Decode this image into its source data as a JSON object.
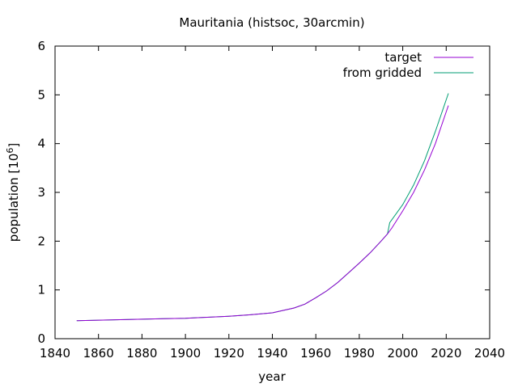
{
  "chart_data": {
    "type": "line",
    "title": "Mauritania (histsoc, 30arcmin)",
    "xlabel": "year",
    "ylabel_base": "population [10",
    "ylabel_exp": "6",
    "ylabel_close": "]",
    "xlim": [
      1840,
      2040
    ],
    "ylim": [
      0,
      6
    ],
    "xticks": [
      1840,
      1860,
      1880,
      1900,
      1920,
      1940,
      1960,
      1980,
      2000,
      2020,
      2040
    ],
    "yticks": [
      0,
      1,
      2,
      3,
      4,
      5,
      6
    ],
    "grid": false,
    "legend_position": "top-right",
    "series": [
      {
        "name": "target",
        "color": "#9400d3",
        "points": [
          [
            1850,
            0.37
          ],
          [
            1860,
            0.38
          ],
          [
            1870,
            0.39
          ],
          [
            1880,
            0.4
          ],
          [
            1890,
            0.41
          ],
          [
            1900,
            0.42
          ],
          [
            1910,
            0.44
          ],
          [
            1920,
            0.46
          ],
          [
            1930,
            0.49
          ],
          [
            1940,
            0.53
          ],
          [
            1950,
            0.63
          ],
          [
            1955,
            0.71
          ],
          [
            1960,
            0.84
          ],
          [
            1965,
            0.98
          ],
          [
            1970,
            1.15
          ],
          [
            1975,
            1.35
          ],
          [
            1980,
            1.55
          ],
          [
            1985,
            1.76
          ],
          [
            1990,
            2.0
          ],
          [
            1993,
            2.15
          ],
          [
            1995,
            2.27
          ],
          [
            2000,
            2.62
          ],
          [
            2005,
            3.0
          ],
          [
            2010,
            3.46
          ],
          [
            2015,
            4.0
          ],
          [
            2020,
            4.65
          ],
          [
            2021,
            4.78
          ]
        ]
      },
      {
        "name": "from gridded",
        "color": "#009e73",
        "points": [
          [
            1850,
            0.37
          ],
          [
            1860,
            0.38
          ],
          [
            1870,
            0.39
          ],
          [
            1880,
            0.4
          ],
          [
            1890,
            0.41
          ],
          [
            1900,
            0.42
          ],
          [
            1910,
            0.44
          ],
          [
            1920,
            0.46
          ],
          [
            1930,
            0.49
          ],
          [
            1940,
            0.53
          ],
          [
            1950,
            0.63
          ],
          [
            1955,
            0.71
          ],
          [
            1960,
            0.84
          ],
          [
            1965,
            0.98
          ],
          [
            1970,
            1.15
          ],
          [
            1975,
            1.35
          ],
          [
            1980,
            1.55
          ],
          [
            1985,
            1.76
          ],
          [
            1990,
            2.0
          ],
          [
            1993,
            2.15
          ],
          [
            1994,
            2.38
          ],
          [
            2000,
            2.75
          ],
          [
            2005,
            3.15
          ],
          [
            2010,
            3.65
          ],
          [
            2015,
            4.25
          ],
          [
            2020,
            4.9
          ],
          [
            2021,
            5.03
          ]
        ]
      }
    ]
  }
}
